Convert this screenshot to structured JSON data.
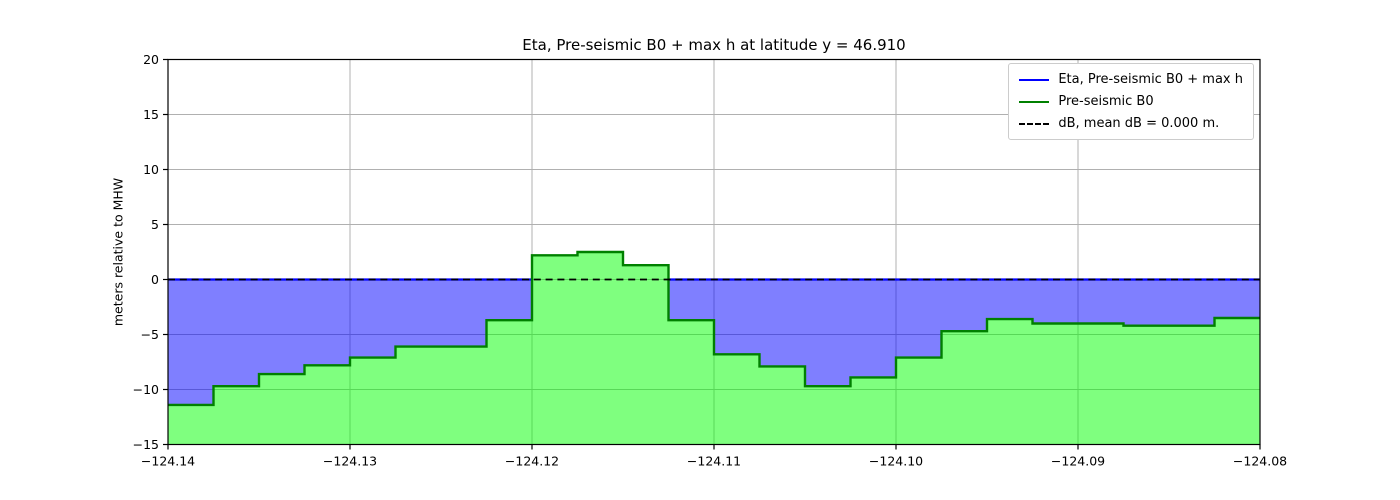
{
  "chart_data": {
    "type": "area",
    "title": "Eta, Pre-seismic B0 + max h at latitude y = 46.910",
    "ylabel": "meters relative to MHW",
    "xlim": [
      -124.14,
      -124.08
    ],
    "ylim": [
      -15,
      20
    ],
    "grid": true,
    "xticks": {
      "values": [
        -124.14,
        -124.13,
        -124.12,
        -124.11,
        -124.1,
        -124.09,
        -124.08
      ],
      "labels": [
        "−124.14",
        "−124.13",
        "−124.12",
        "−124.11",
        "−124.10",
        "−124.09",
        "−124.08"
      ]
    },
    "yticks": {
      "values": [
        20,
        15,
        10,
        5,
        0,
        -5,
        -10,
        -15
      ],
      "labels": [
        "20",
        "15",
        "10",
        "5",
        "0",
        "−5",
        "−10",
        "−15"
      ]
    },
    "water_fill": "rgba(0,0,255,0.5)",
    "series": [
      {
        "name": "Eta, Pre-seismic B0 + max h",
        "type": "hline",
        "y": 0,
        "color": "#0000ff",
        "style": "solid",
        "note": "drawn only where Pre-seismic B0 < 0"
      },
      {
        "name": "Pre-seismic B0",
        "type": "steps",
        "color": "#008000",
        "fill": "rgba(0,255,0,0.5)",
        "edges": [
          -124.14,
          -124.1375,
          -124.135,
          -124.1325,
          -124.13,
          -124.1275,
          -124.1225,
          -124.12,
          -124.1175,
          -124.115,
          -124.1125,
          -124.11,
          -124.1075,
          -124.105,
          -124.1025,
          -124.1,
          -124.0975,
          -124.095,
          -124.0925,
          -124.0875,
          -124.0825,
          -124.08
        ],
        "values": [
          -11.4,
          -9.7,
          -8.6,
          -7.8,
          -7.1,
          -6.1,
          -3.7,
          2.2,
          2.5,
          1.3,
          -3.7,
          -6.8,
          -7.9,
          -9.7,
          -8.9,
          -7.1,
          -4.7,
          -3.6,
          -4.0,
          -4.2,
          -3.5
        ]
      },
      {
        "name": "dB, mean dB = 0.000 m.",
        "type": "hline",
        "y": 0,
        "color": "#000000",
        "style": "dashed"
      }
    ],
    "legend": {
      "position": "upper right",
      "entries": [
        {
          "label": "Eta, Pre-seismic B0 + max h",
          "color": "#0000ff",
          "dash": false
        },
        {
          "label": "Pre-seismic B0",
          "color": "#008000",
          "dash": false
        },
        {
          "label": "dB, mean dB = 0.000 m.",
          "color": "#000000",
          "dash": true
        }
      ]
    }
  }
}
